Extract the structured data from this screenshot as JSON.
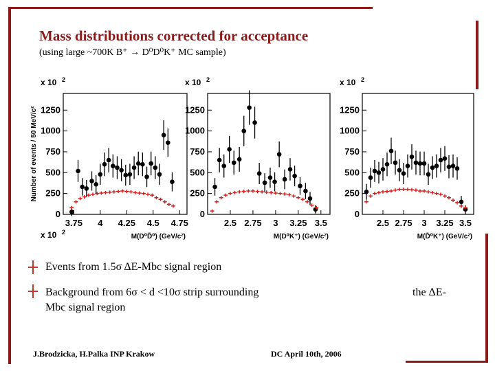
{
  "title": "Mass distributions corrected for acceptance",
  "subtitle": "(using large ~700K B⁺ → D⁰D⁰K⁺ MC sample)",
  "bullets": [
    "Events from 1.5σ ΔE-Mbc signal region",
    "Background from 6σ < d <10σ strip surrounding",
    "Mbc signal region",
    "the ΔE-"
  ],
  "footer": {
    "authors": "J.Brodzicka, H.Palka  INP Krakow",
    "event": "DC    April 10th, 2006"
  },
  "colors": {
    "accent": "#8b1a1a",
    "background_points": "#d62020",
    "signal_points": "#000000"
  },
  "chart_data": [
    {
      "type": "scatter",
      "ylabel": "Number of events / 50 MeV/c²",
      "xlabel": "M(D⁰D̄⁰) (GeV/c²)",
      "scale_label": "x 10",
      "scale_exp": "2",
      "xlim": [
        3.65,
        4.82
      ],
      "ylim": [
        0,
        1450
      ],
      "xticks": [
        3.75,
        4,
        4.25,
        4.5,
        4.75
      ],
      "xtick_labels": [
        "3.75",
        "4",
        "4.25",
        "4.5",
        "4.75"
      ],
      "yticks": [
        0,
        250,
        500,
        750,
        1000,
        1250
      ],
      "ytick_labels": [
        "0",
        "250",
        "500",
        "750",
        "1000",
        "1250"
      ],
      "series": [
        {
          "name": "signal",
          "x": [
            3.73,
            3.79,
            3.83,
            3.87,
            3.92,
            3.96,
            4.0,
            4.04,
            4.08,
            4.12,
            4.16,
            4.2,
            4.24,
            4.28,
            4.32,
            4.36,
            4.4,
            4.44,
            4.48,
            4.52,
            4.56,
            4.6,
            4.64,
            4.68
          ],
          "y": [
            30,
            520,
            330,
            310,
            400,
            360,
            480,
            600,
            650,
            580,
            560,
            530,
            470,
            480,
            560,
            610,
            600,
            450,
            610,
            560,
            480,
            950,
            860,
            390
          ]
        },
        {
          "name": "background",
          "x": [
            3.73,
            3.77,
            3.81,
            3.85,
            3.89,
            3.93,
            3.97,
            4.01,
            4.05,
            4.09,
            4.13,
            4.17,
            4.21,
            4.25,
            4.29,
            4.33,
            4.37,
            4.41,
            4.45,
            4.49,
            4.53,
            4.57,
            4.61,
            4.65,
            4.69
          ],
          "y": [
            80,
            150,
            190,
            210,
            230,
            240,
            250,
            255,
            260,
            265,
            270,
            275,
            280,
            275,
            270,
            260,
            255,
            250,
            240,
            230,
            200,
            180,
            150,
            120,
            100
          ]
        }
      ]
    },
    {
      "type": "scatter",
      "xlabel": "M(D⁰K⁺) (GeV/c²)",
      "scale_label": "x 10",
      "scale_exp": "2",
      "xlim": [
        2.25,
        3.6
      ],
      "ylim": [
        0,
        1450
      ],
      "xticks": [
        2.5,
        2.75,
        3,
        3.25,
        3.5
      ],
      "xtick_labels": [
        "2.5",
        "2.75",
        "3",
        "3.25",
        "3.5"
      ],
      "yticks": [
        0,
        250,
        500,
        750,
        1000,
        1250
      ],
      "ytick_labels": [
        "0",
        "250",
        "500",
        "750",
        "1000",
        "1250"
      ],
      "series": [
        {
          "name": "signal",
          "x": [
            2.33,
            2.38,
            2.43,
            2.49,
            2.54,
            2.6,
            2.65,
            2.71,
            2.77,
            2.82,
            2.88,
            2.94,
            2.99,
            3.04,
            3.1,
            3.16,
            3.21,
            3.27,
            3.33,
            3.38,
            3.44
          ],
          "y": [
            330,
            650,
            580,
            780,
            620,
            660,
            1000,
            1280,
            1100,
            490,
            380,
            440,
            390,
            720,
            420,
            540,
            460,
            340,
            280,
            190,
            60
          ]
        },
        {
          "name": "background",
          "x": [
            2.3,
            2.35,
            2.4,
            2.45,
            2.5,
            2.55,
            2.6,
            2.65,
            2.7,
            2.75,
            2.8,
            2.85,
            2.9,
            2.95,
            3.0,
            3.05,
            3.1,
            3.15,
            3.2,
            3.25,
            3.3,
            3.35,
            3.4,
            3.45
          ],
          "y": [
            40,
            150,
            200,
            230,
            250,
            260,
            270,
            275,
            280,
            280,
            275,
            270,
            265,
            260,
            255,
            250,
            245,
            235,
            220,
            200,
            180,
            150,
            110,
            80
          ]
        }
      ]
    },
    {
      "type": "scatter",
      "xlabel": "M(D̄⁰K⁺) (GeV/c²)",
      "scale_label": "x 10",
      "scale_exp": "2",
      "xlim": [
        2.25,
        3.6
      ],
      "ylim": [
        0,
        1450
      ],
      "xticks": [
        2.5,
        2.75,
        3,
        3.25,
        3.5
      ],
      "xtick_labels": [
        "2.5",
        "2.75",
        "3",
        "3.25",
        "3.5"
      ],
      "yticks": [
        0,
        250,
        500,
        750,
        1000,
        1250
      ],
      "ytick_labels": [
        "0",
        "250",
        "500",
        "750",
        "1000",
        "1250"
      ],
      "series": [
        {
          "name": "signal",
          "x": [
            2.3,
            2.35,
            2.4,
            2.45,
            2.5,
            2.55,
            2.6,
            2.65,
            2.7,
            2.75,
            2.8,
            2.85,
            2.9,
            2.95,
            3.0,
            3.05,
            3.1,
            3.15,
            3.2,
            3.25,
            3.3,
            3.35,
            3.4,
            3.45,
            3.5
          ],
          "y": [
            270,
            440,
            520,
            500,
            540,
            600,
            760,
            620,
            530,
            490,
            580,
            690,
            620,
            610,
            610,
            480,
            560,
            580,
            650,
            670,
            570,
            580,
            550,
            150,
            60
          ]
        },
        {
          "name": "background",
          "x": [
            2.3,
            2.35,
            2.4,
            2.45,
            2.5,
            2.55,
            2.6,
            2.65,
            2.7,
            2.75,
            2.8,
            2.85,
            2.9,
            2.95,
            3.0,
            3.05,
            3.1,
            3.15,
            3.2,
            3.25,
            3.3,
            3.35,
            3.4,
            3.45,
            3.5
          ],
          "y": [
            150,
            220,
            250,
            260,
            270,
            275,
            280,
            290,
            300,
            300,
            300,
            295,
            290,
            280,
            280,
            270,
            260,
            250,
            240,
            220,
            200,
            170,
            140,
            100,
            80
          ]
        }
      ]
    }
  ]
}
